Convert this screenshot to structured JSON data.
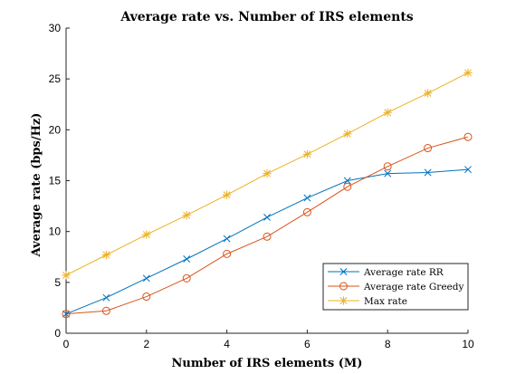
{
  "chart_data": {
    "type": "line",
    "title": "Average rate vs. Number of IRS elements",
    "xlabel": "Number of IRS elements (M)",
    "ylabel": "Average rate (bps/Hz)",
    "xlim": [
      0,
      10
    ],
    "ylim": [
      0,
      30
    ],
    "xticks": [
      "0",
      "2",
      "4",
      "6",
      "8",
      "10"
    ],
    "yticks": [
      "0",
      "5",
      "10",
      "15",
      "20",
      "25",
      "30"
    ],
    "grid": false,
    "legend_position": "bottom-right",
    "x": [
      0,
      1,
      2,
      3,
      4,
      5,
      6,
      7,
      8,
      9,
      10
    ],
    "series": [
      {
        "name": "Average rate RR",
        "color": "#0072BD",
        "marker": "x",
        "values": [
          1.9,
          3.5,
          5.4,
          7.3,
          9.3,
          11.4,
          13.3,
          15.0,
          15.7,
          15.8,
          16.1
        ]
      },
      {
        "name": "Average rate Greedy",
        "color": "#D95319",
        "marker": "circle",
        "values": [
          1.9,
          2.2,
          3.6,
          5.4,
          7.8,
          9.5,
          11.9,
          14.4,
          16.4,
          18.2,
          19.3
        ]
      },
      {
        "name": "Max rate",
        "color": "#EDB120",
        "marker": "asterisk",
        "values": [
          5.7,
          7.7,
          9.7,
          11.6,
          13.6,
          15.7,
          17.6,
          19.6,
          21.7,
          23.6,
          25.6
        ]
      }
    ]
  }
}
